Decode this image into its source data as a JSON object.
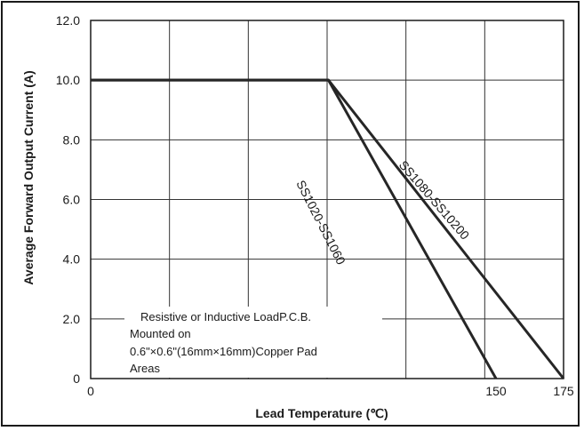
{
  "chart_data": {
    "type": "line",
    "xlabel": "Lead Temperature (℃)",
    "ylabel": "Average Forward Output Current (A)",
    "xlim": [
      0,
      175
    ],
    "ylim": [
      0,
      12
    ],
    "x_ticks": [
      {
        "value": 0,
        "label": "0"
      },
      {
        "value": 150,
        "label": "150"
      },
      {
        "value": 175,
        "label": "175"
      }
    ],
    "y_ticks": [
      {
        "value": 0,
        "label": "0"
      },
      {
        "value": 2,
        "label": "2.0"
      },
      {
        "value": 4,
        "label": "4.0"
      },
      {
        "value": 6,
        "label": "6.0"
      },
      {
        "value": 8,
        "label": "8.0"
      },
      {
        "value": 10,
        "label": "10.0"
      },
      {
        "value": 12,
        "label": "12.0"
      }
    ],
    "grid": true,
    "series": [
      {
        "name": "SS1020-SS1060",
        "x": [
          0,
          88,
          150
        ],
        "y": [
          10,
          10,
          0
        ]
      },
      {
        "name": "SS1080-SS10200",
        "x": [
          0,
          88,
          175
        ],
        "y": [
          10,
          10,
          0
        ]
      }
    ],
    "annotation_lines": [
      "Resistive or Inductive LoadP.C.B.",
      "Mounted on",
      "0.6\"×0.6\"(16mm×16mm)Copper Pad",
      "Areas"
    ]
  },
  "colors": {
    "line": "#262626",
    "grid": "#333333",
    "text": "#1a1a1a"
  }
}
